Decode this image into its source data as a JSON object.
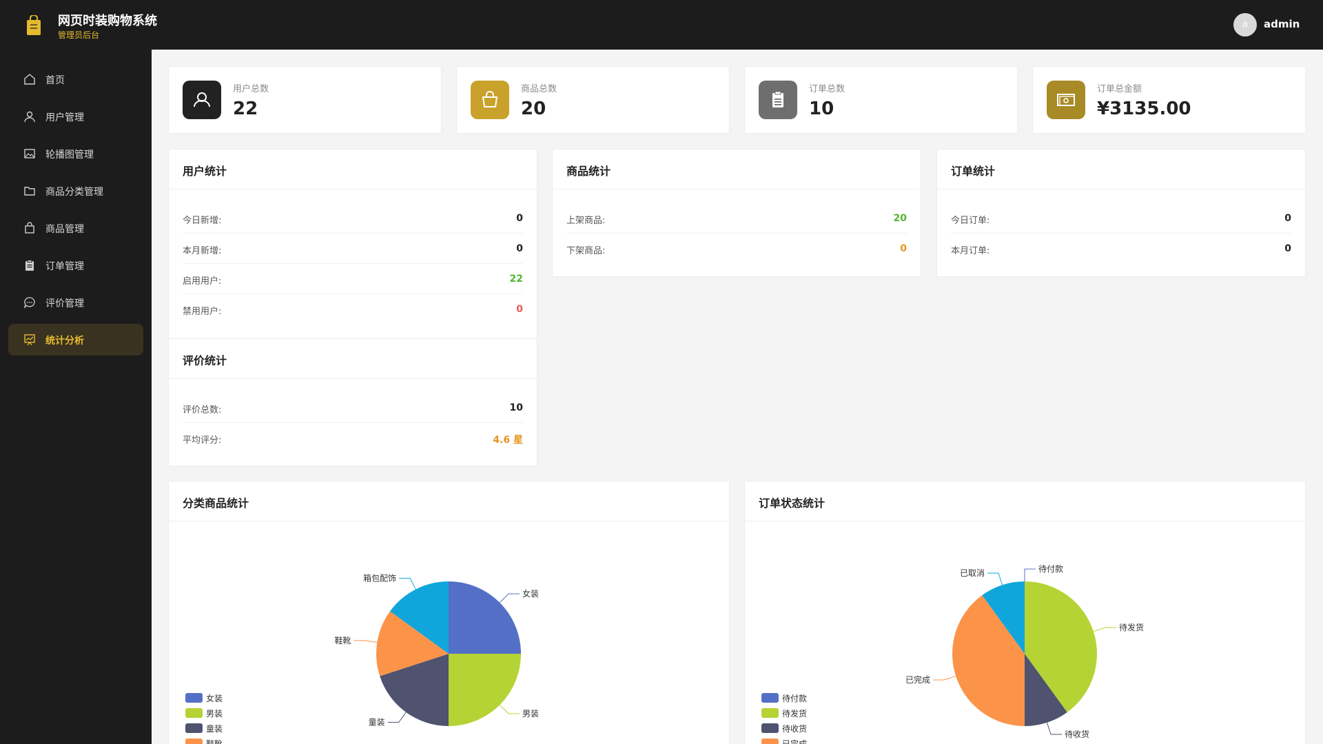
{
  "header": {
    "title": "网页时装购物系统",
    "subtitle": "管理员后台",
    "avatar_letter": "a",
    "username": "admin"
  },
  "sidebar": {
    "items": [
      {
        "label": "首页",
        "icon": "home-icon"
      },
      {
        "label": "用户管理",
        "icon": "user-icon"
      },
      {
        "label": "轮播图管理",
        "icon": "image-icon"
      },
      {
        "label": "商品分类管理",
        "icon": "folder-icon"
      },
      {
        "label": "商品管理",
        "icon": "bag-icon"
      },
      {
        "label": "订单管理",
        "icon": "clipboard-icon"
      },
      {
        "label": "评价管理",
        "icon": "chat-icon"
      },
      {
        "label": "统计分析",
        "icon": "chart-icon",
        "active": true
      }
    ]
  },
  "kpis": [
    {
      "label": "用户总数",
      "value": "22",
      "color": "#222222",
      "icon": "user-icon"
    },
    {
      "label": "商品总数",
      "value": "20",
      "color": "#c9a22b",
      "icon": "shopping-bag-icon"
    },
    {
      "label": "订单总数",
      "value": "10",
      "color": "#6e6e6e",
      "icon": "clipboard-icon"
    },
    {
      "label": "订单总金额",
      "value": "¥3135.00",
      "color": "#a88a27",
      "icon": "money-icon"
    }
  ],
  "user_stats": {
    "title": "用户统计",
    "rows": [
      {
        "label": "今日新增:",
        "value": "0"
      },
      {
        "label": "本月新增:",
        "value": "0"
      },
      {
        "label": "启用用户:",
        "value": "22"
      },
      {
        "label": "禁用用户:",
        "value": "0"
      }
    ]
  },
  "product_stats": {
    "title": "商品统计",
    "rows": [
      {
        "label": "上架商品:",
        "value": "20"
      },
      {
        "label": "下架商品:",
        "value": "0"
      }
    ]
  },
  "order_stats": {
    "title": "订单统计",
    "rows": [
      {
        "label": "今日订单:",
        "value": "0"
      },
      {
        "label": "本月订单:",
        "value": "0"
      }
    ]
  },
  "review_stats": {
    "title": "评价统计",
    "rows": [
      {
        "label": "评价总数:",
        "value": "10"
      },
      {
        "label": "平均评分:",
        "value": "4.6 星"
      }
    ]
  },
  "colors": {
    "accent": "#e8bb2f",
    "positive": "#53b530",
    "warning": "#e6951f",
    "danger": "#f05656"
  },
  "chart_data": [
    {
      "type": "pie",
      "title": "分类商品统计",
      "categories": [
        "女装",
        "男装",
        "童装",
        "鞋靴",
        "箱包配饰"
      ],
      "values": [
        5,
        5,
        4,
        3,
        3
      ],
      "colors": [
        "#5470c6",
        "#b5d334",
        "#4f5370",
        "#fb9449",
        "#10a6db"
      ],
      "legend": "bottom-left",
      "legend_visible": [
        "女装",
        "男装",
        "童装",
        "鞋靴"
      ]
    },
    {
      "type": "pie",
      "title": "订单状态统计",
      "categories": [
        "待付款",
        "待发货",
        "待收货",
        "已完成",
        "已取消"
      ],
      "values": [
        0,
        4,
        1,
        4,
        1
      ],
      "colors": [
        "#5470c6",
        "#b5d334",
        "#4f5370",
        "#fb9449",
        "#10a6db"
      ],
      "legend": "bottom-left",
      "legend_visible": [
        "待付款",
        "待发货",
        "待收货",
        "已完成"
      ]
    }
  ]
}
